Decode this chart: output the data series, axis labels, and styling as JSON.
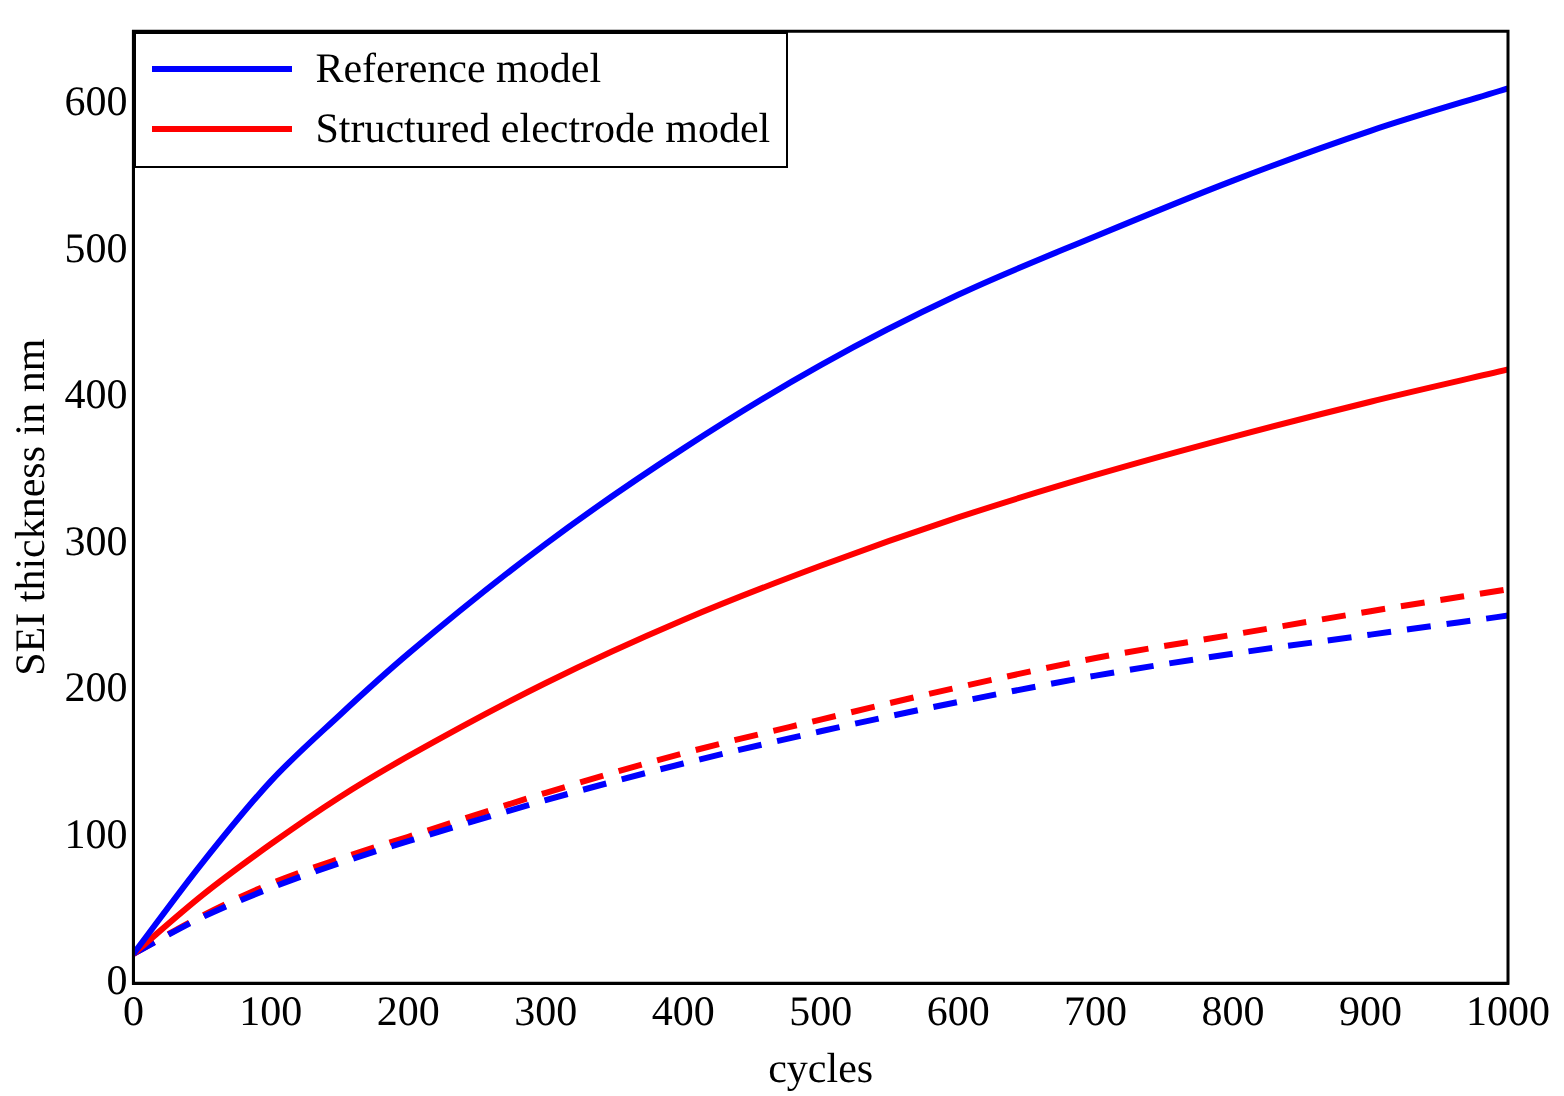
{
  "chart_data": {
    "type": "line",
    "xlabel": "cycles",
    "ylabel": "SEI thickness in nm",
    "xlim": [
      0,
      1000
    ],
    "xticks": [
      0,
      100,
      200,
      300,
      400,
      500,
      600,
      700,
      800,
      900,
      1000
    ],
    "ylim": [
      0,
      650
    ],
    "yticks": [
      0,
      100,
      200,
      300,
      400,
      500,
      600
    ],
    "grid": false,
    "legend": "top left",
    "marker": "none",
    "series": [
      {
        "name": "Reference model",
        "color": "#0000ff",
        "line_style": "solid",
        "x": [
          0,
          50,
          100,
          150,
          200,
          300,
          400,
          500,
          600,
          700,
          800,
          900,
          1000
        ],
        "values": [
          20,
          82,
          138,
          183,
          225,
          300,
          365,
          422,
          470,
          510,
          548,
          582,
          611
        ]
      },
      {
        "name": "Structured electrode model",
        "color": "#ff0000",
        "line_style": "solid",
        "x": [
          0,
          50,
          100,
          150,
          200,
          300,
          400,
          500,
          600,
          700,
          800,
          900,
          1000
        ],
        "values": [
          20,
          60,
          95,
          127,
          155,
          205,
          248,
          285,
          318,
          347,
          373,
          397,
          419
        ]
      },
      {
        "color": "#0000ff",
        "line_style": "dashed",
        "x": [
          0,
          50,
          100,
          150,
          200,
          300,
          400,
          500,
          600,
          700,
          800,
          900,
          1000
        ],
        "values": [
          20,
          45,
          65,
          82,
          97,
          125,
          150,
          172,
          192,
          210,
          225,
          238,
          251
        ]
      },
      {
        "color": "#ff0000",
        "line_style": "dashed",
        "x": [
          0,
          50,
          100,
          150,
          200,
          300,
          400,
          500,
          600,
          700,
          800,
          900,
          1000
        ],
        "values": [
          20,
          46,
          68,
          85,
          100,
          130,
          157,
          180,
          202,
          222,
          238,
          254,
          269
        ]
      }
    ]
  }
}
